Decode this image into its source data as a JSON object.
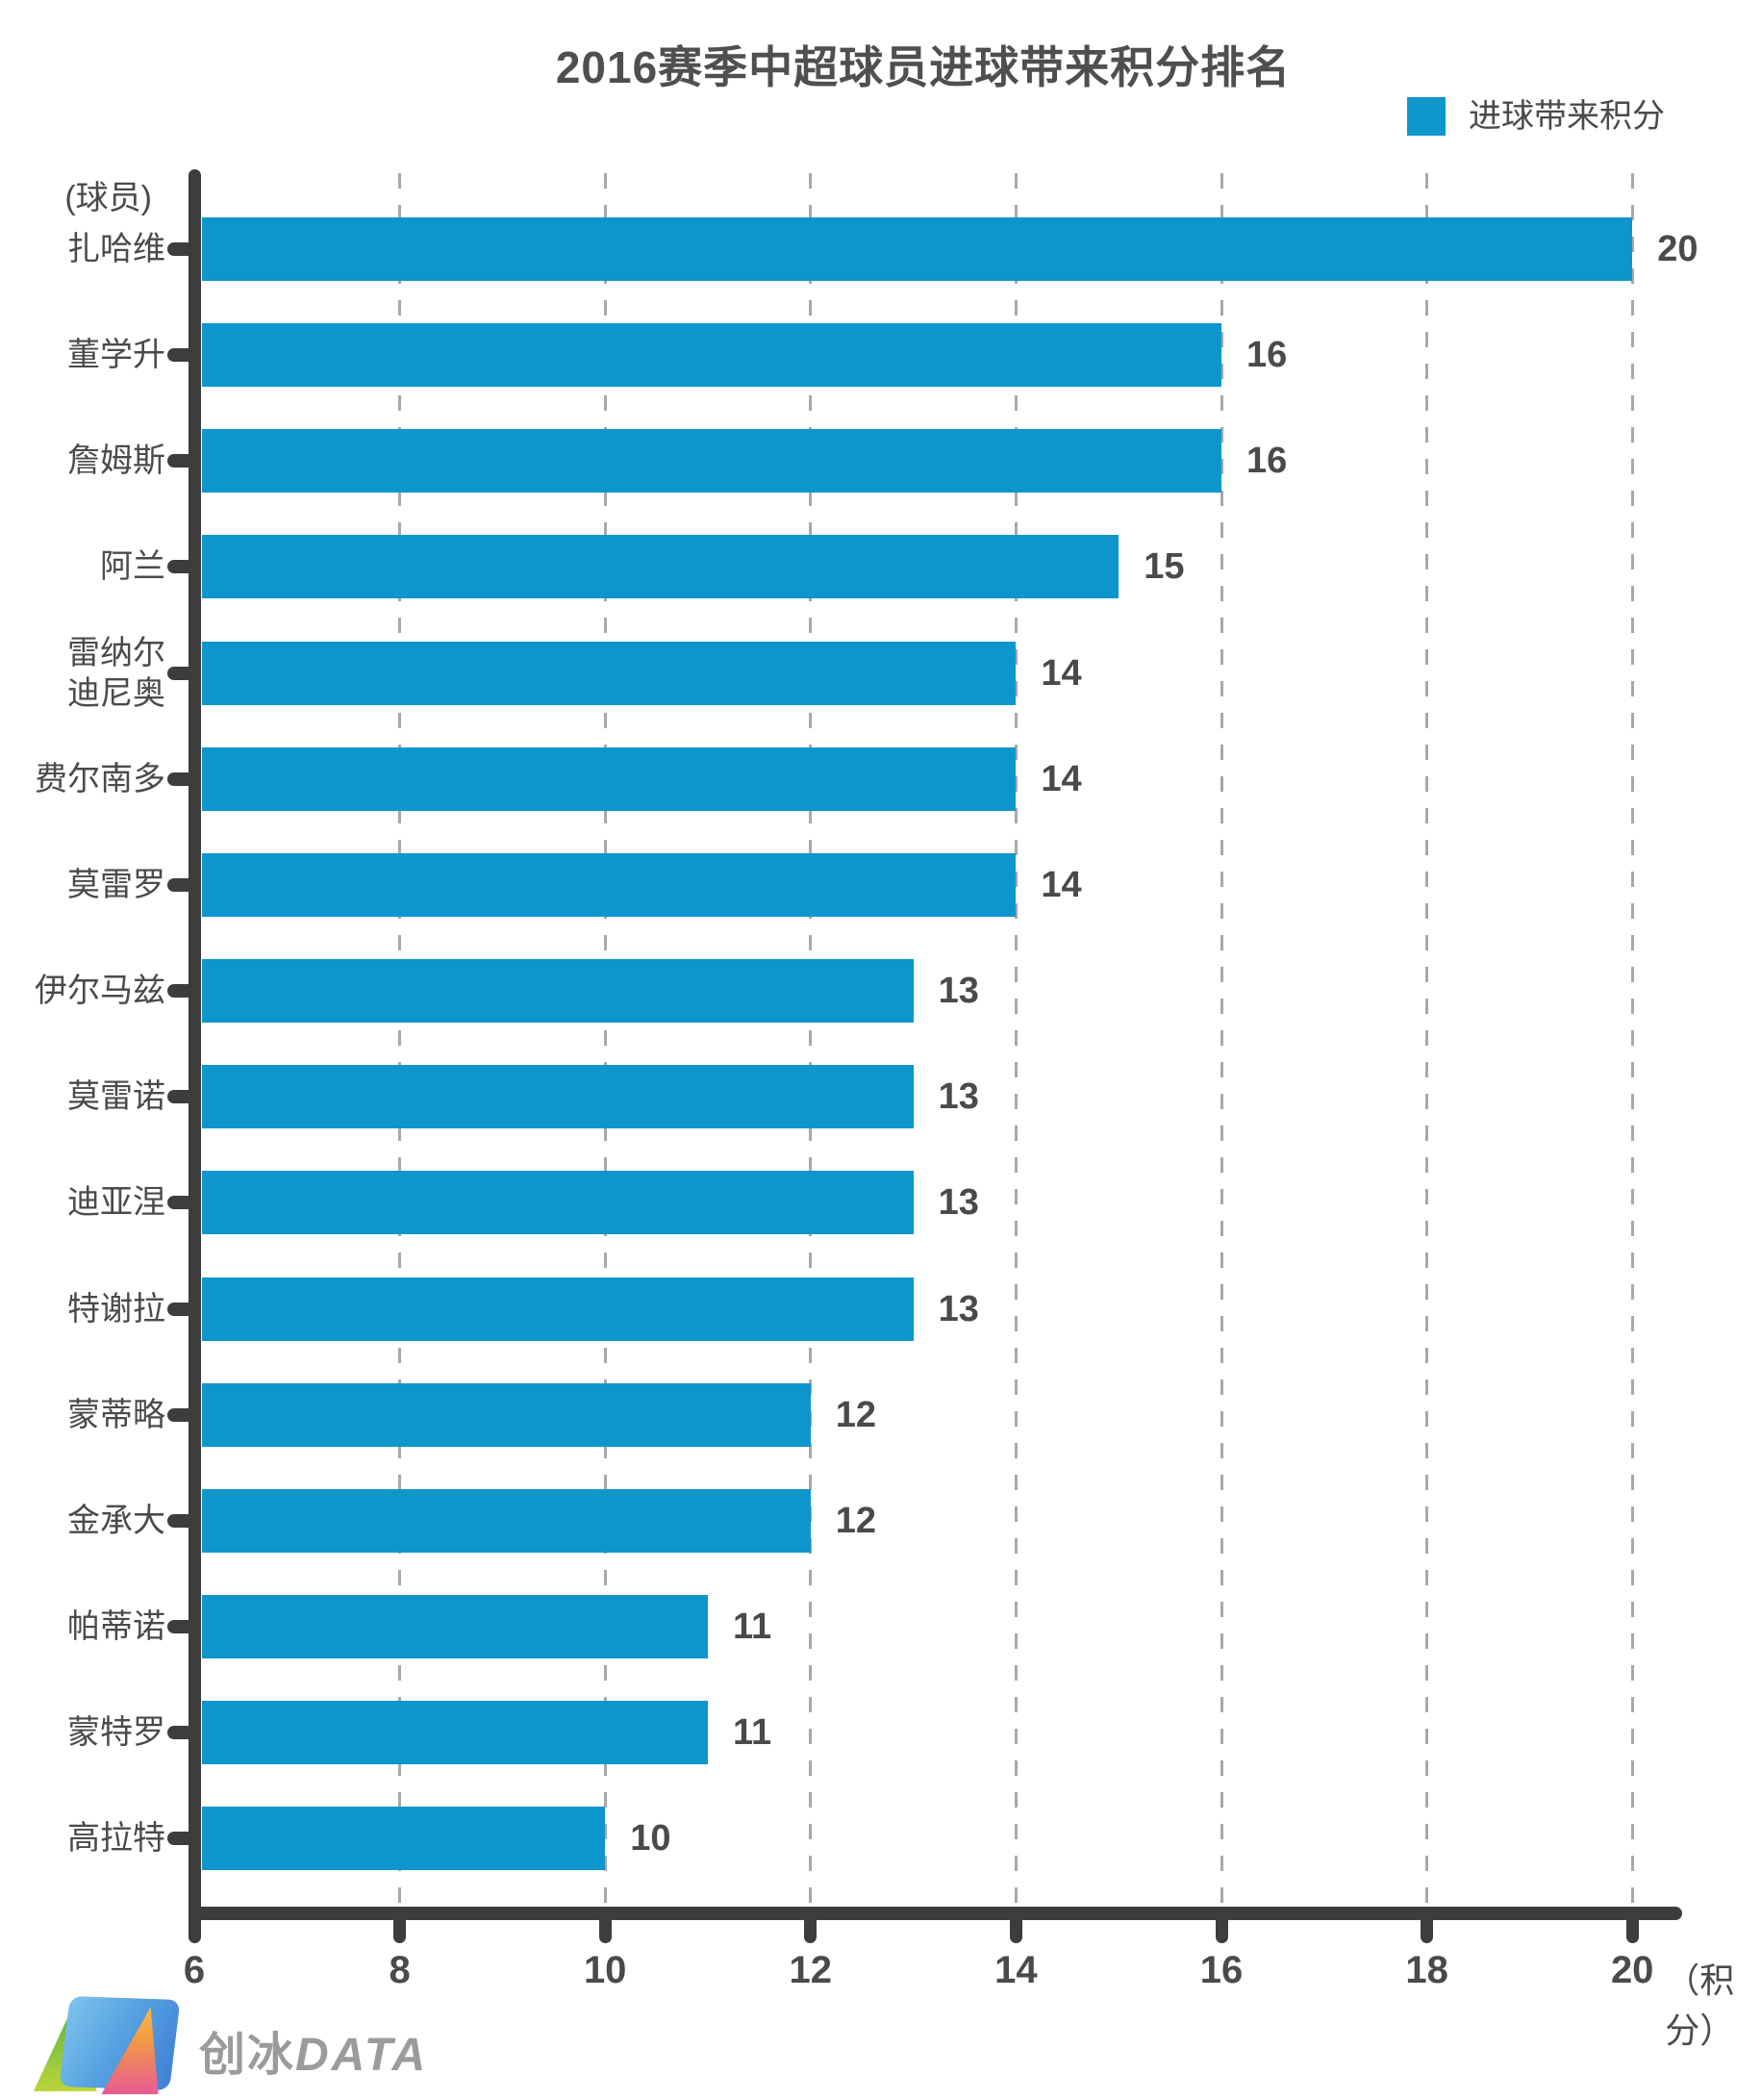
{
  "title": "2016赛季中超球员进球带来积分排名",
  "legend": {
    "label": "进球带来积分",
    "color": "#0d96cc"
  },
  "y_axis_title": "(球员)",
  "x_axis_unit": "（积分）",
  "watermark": {
    "brand_cn": "创冰",
    "brand_en": "DATA"
  },
  "chart_data": {
    "type": "bar",
    "orientation": "horizontal",
    "title": "2016赛季中超球员进球带来积分排名",
    "series_name": "进球带来积分",
    "categories": [
      "扎哈维",
      "董学升",
      "詹姆斯",
      "阿兰",
      "雷纳尔迪尼奥",
      "费尔南多",
      "莫雷罗",
      "伊尔马兹",
      "莫雷诺",
      "迪亚涅",
      "特谢拉",
      "蒙蒂略",
      "金承大",
      "帕蒂诺",
      "蒙特罗",
      "高拉特"
    ],
    "values": [
      20,
      16,
      16,
      15,
      14,
      14,
      14,
      13,
      13,
      13,
      13,
      12,
      12,
      11,
      11,
      10
    ],
    "category_display": {
      "雷纳尔迪尼奥": [
        "雷纳尔",
        "迪尼奥"
      ]
    },
    "xlabel": "积分",
    "ylabel": "球员",
    "xlim": [
      6,
      20
    ],
    "x_ticks": [
      6,
      8,
      10,
      12,
      14,
      16,
      18,
      20
    ],
    "grid": true,
    "gridline_style": "dashed",
    "legend_position": "top-right",
    "bar_color": "#0d96cc",
    "axis_color": "#3d3d3d",
    "text_color": "#4a4a4a"
  }
}
